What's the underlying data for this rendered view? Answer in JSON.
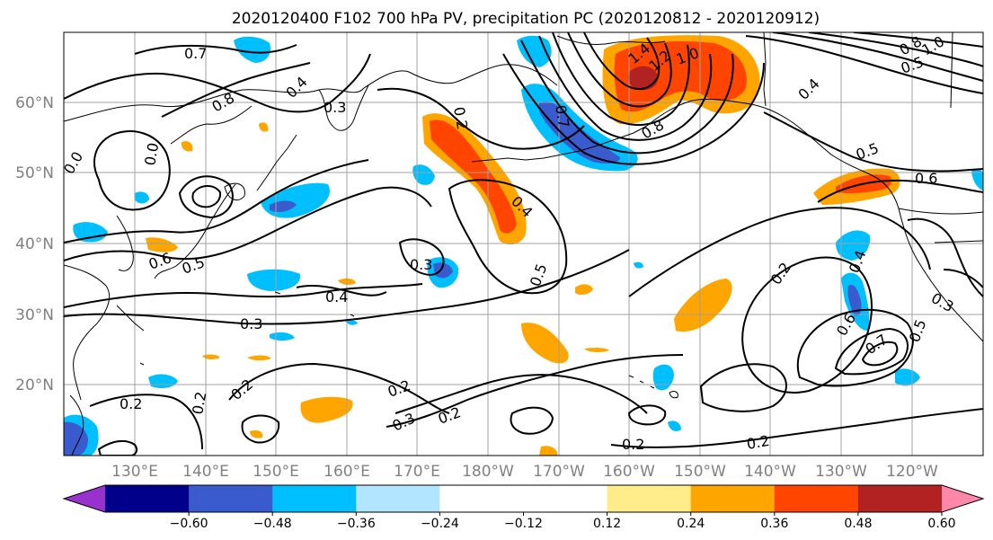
{
  "title": "2020120400 F102 700 hPa PV, precipitation PC (2020120812 - 2020120912)",
  "lat_labels": [
    "60°N",
    "50°N",
    "40°N",
    "30°N",
    "20°N"
  ],
  "lon_labels": [
    "130°E",
    "140°E",
    "150°E",
    "160°E",
    "170°E",
    "180°W",
    "170°W",
    "160°W",
    "150°W",
    "140°W",
    "130°W",
    "120°W"
  ],
  "colorbar": {
    "colors": [
      "#9932cc",
      "#00008b",
      "#3a5bcd",
      "#00bfff",
      "#b2e5ff",
      "#ffffff",
      "#ffffff",
      "#ffec8b",
      "#ffa500",
      "#ff4500",
      "#b22222",
      "#ff88aa"
    ],
    "tick_labels": [
      "−0.60",
      "−0.48",
      "−0.36",
      "−0.24",
      "−0.12",
      "0.12",
      "0.24",
      "0.36",
      "0.48",
      "0.60"
    ]
  },
  "contour_labels": [
    "0.7",
    "0.8",
    "0.4",
    "0.3",
    "0.2",
    "1.4",
    "1.2",
    "1.0",
    "0.8",
    "0.7",
    "1.0",
    "0.8",
    "0.5",
    "0.4",
    "0.5",
    "0.6",
    "0.0",
    "0.0",
    "0.6",
    "0.5",
    "0.4",
    "0.3",
    "0.3",
    "0.4",
    "0.5",
    "0.2",
    "0.4",
    "0.3",
    "0.6",
    "0.7",
    "0.5",
    "0.2",
    "0.2",
    "0.2",
    "0.2",
    "0.3",
    "0.2",
    "0.2",
    "0.2"
  ],
  "colors": {
    "contour": "#000000",
    "grid": "#a0a0a0",
    "coast": "#000000"
  }
}
